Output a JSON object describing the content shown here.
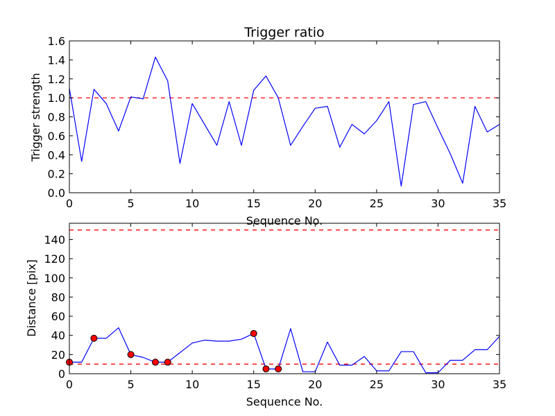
{
  "chart_data": [
    {
      "type": "line",
      "title": "Trigger ratio",
      "xlabel": "Sequence No.",
      "ylabel": "Trigger strength",
      "xlim": [
        0,
        35
      ],
      "ylim": [
        0,
        1.6
      ],
      "xticks": [
        "0",
        "5",
        "10",
        "15",
        "20",
        "25",
        "30",
        "35"
      ],
      "yticks": [
        "0.0",
        "0.2",
        "0.4",
        "0.6",
        "0.8",
        "1.0",
        "1.2",
        "1.4",
        "1.6"
      ],
      "grid": false,
      "line_color": "#0000ff",
      "reference_line": {
        "value": 1.0,
        "color": "#ff0000",
        "style": "dashed"
      },
      "x": [
        0,
        1,
        2,
        3,
        4,
        5,
        6,
        7,
        8,
        9,
        10,
        11,
        12,
        13,
        14,
        15,
        16,
        17,
        18,
        19,
        20,
        21,
        22,
        23,
        24,
        25,
        26,
        27,
        28,
        29,
        30,
        31,
        32,
        33,
        34,
        35
      ],
      "y": [
        1.1,
        0.33,
        1.09,
        0.94,
        0.65,
        1.01,
        0.99,
        1.43,
        1.18,
        0.31,
        0.94,
        0.72,
        0.5,
        0.96,
        0.5,
        1.08,
        1.23,
        1.0,
        0.5,
        0.7,
        0.89,
        0.91,
        0.48,
        0.72,
        0.62,
        0.76,
        0.96,
        0.07,
        0.93,
        0.96,
        0.68,
        0.41,
        0.1,
        0.91,
        0.64,
        0.72
      ]
    },
    {
      "type": "line",
      "title": "",
      "xlabel": "Sequence No.",
      "ylabel": "Distance [pix]",
      "xlim": [
        0,
        35
      ],
      "ylim": [
        0,
        157
      ],
      "xticks": [
        "0",
        "5",
        "10",
        "15",
        "20",
        "25",
        "30",
        "35"
      ],
      "yticks": [
        "0",
        "20",
        "40",
        "60",
        "80",
        "100",
        "120",
        "140"
      ],
      "grid": false,
      "line_color": "#0000ff",
      "marker_color": "#ff0000",
      "reference_lines": [
        {
          "value": 150,
          "color": "#ff0000",
          "style": "dashed"
        },
        {
          "value": 10,
          "color": "#ff0000",
          "style": "dashed"
        }
      ],
      "x": [
        0,
        1,
        2,
        3,
        4,
        5,
        6,
        7,
        8,
        9,
        10,
        11,
        12,
        13,
        14,
        15,
        16,
        17,
        18,
        19,
        20,
        21,
        22,
        23,
        24,
        25,
        26,
        27,
        28,
        29,
        30,
        31,
        32,
        33,
        34,
        35
      ],
      "y": [
        12,
        12,
        37,
        37,
        48,
        20,
        17,
        12,
        12,
        22,
        32,
        35,
        34,
        34,
        36,
        42,
        5,
        5,
        47,
        2,
        2,
        33,
        9,
        9,
        18,
        3,
        3,
        23,
        23,
        1,
        1,
        14,
        14,
        25,
        25,
        39
      ],
      "markers": [
        {
          "x": 0,
          "y": 12
        },
        {
          "x": 2,
          "y": 37
        },
        {
          "x": 5,
          "y": 20
        },
        {
          "x": 7,
          "y": 12
        },
        {
          "x": 8,
          "y": 12
        },
        {
          "x": 15,
          "y": 42
        },
        {
          "x": 16,
          "y": 5
        },
        {
          "x": 17,
          "y": 5
        }
      ]
    }
  ]
}
